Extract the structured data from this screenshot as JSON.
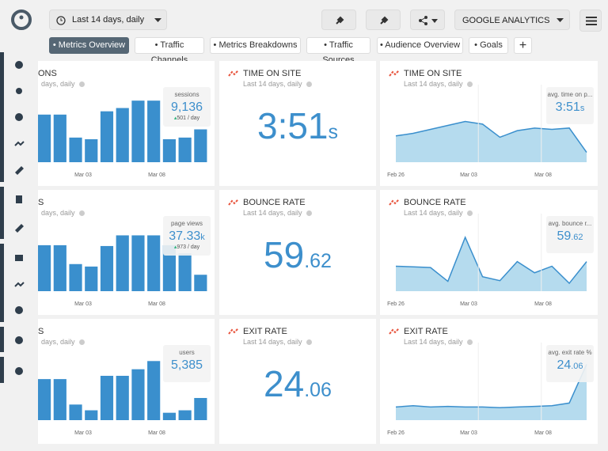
{
  "header": {
    "date_range": "Last 14 days, daily",
    "source": "GOOGLE ANALYTICS"
  },
  "tabs": [
    "Metrics Overview",
    "Traffic Channels",
    "Metrics Breakdowns",
    "Traffic Sources",
    "Audience Overview",
    "Goals"
  ],
  "active_tab": 0,
  "widgets": [
    {
      "kind": "bar",
      "title": "ONS",
      "subtitle": "days, daily",
      "ylim": [
        0,
        80
      ],
      "values": [
        58,
        58,
        30,
        28,
        62,
        66,
        75,
        75,
        28,
        30,
        40
      ],
      "x_labels": [
        "Mar 03",
        "Mar 08"
      ],
      "box": {
        "label": "sessions",
        "value": "9,136",
        "change": "501 / day"
      }
    },
    {
      "kind": "number",
      "title": "TIME ON SITE",
      "subtitle": "Last 14 days, daily",
      "value_main": "3:51",
      "value_suffix": "s"
    },
    {
      "kind": "area",
      "title": "TIME ON SITE",
      "subtitle": "Last 14 days, daily",
      "ylim": [
        0,
        100
      ],
      "values": [
        40,
        44,
        50,
        56,
        62,
        58,
        38,
        48,
        52,
        50,
        52,
        15
      ],
      "x_labels": [
        "Feb 26",
        "Mar 03",
        "Mar 08"
      ],
      "box": {
        "label": "avg. time on p...",
        "value": "3:51",
        "suffix": "s"
      }
    },
    {
      "kind": "bar",
      "title": "S",
      "subtitle": "days, daily",
      "ylim": [
        0,
        80
      ],
      "values": [
        56,
        56,
        33,
        30,
        55,
        68,
        68,
        68,
        56,
        46,
        20
      ],
      "x_labels": [
        "Mar 03",
        "Mar 08"
      ],
      "box": {
        "label": "page views",
        "value": "37.33",
        "suffix": "k",
        "change": "973 / day"
      }
    },
    {
      "kind": "number",
      "title": "BOUNCE RATE",
      "subtitle": "Last 14 days, daily",
      "value_main": "59",
      "value_suffix": ".62"
    },
    {
      "kind": "area",
      "title": "BOUNCE RATE",
      "subtitle": "Last 14 days, daily",
      "ylim": [
        0,
        100
      ],
      "values": [
        38,
        37,
        36,
        15,
        82,
        22,
        16,
        45,
        28,
        38,
        12,
        45
      ],
      "x_labels": [
        "Feb 26",
        "Mar 03",
        "Mar 08"
      ],
      "box": {
        "label": "avg. bounce r...",
        "value": "59",
        "suffix": ".62"
      }
    },
    {
      "kind": "bar",
      "title": "S",
      "subtitle": "days, daily",
      "ylim": [
        0,
        80
      ],
      "values": [
        50,
        50,
        19,
        12,
        54,
        54,
        62,
        72,
        9,
        12,
        27
      ],
      "x_labels": [
        "Mar 03",
        "Mar 08"
      ],
      "box": {
        "label": "users",
        "value": "5,385"
      }
    },
    {
      "kind": "number",
      "title": "EXIT RATE",
      "subtitle": "Last 14 days, daily",
      "value_main": "24",
      "value_suffix": ".06"
    },
    {
      "kind": "area",
      "title": "EXIT RATE",
      "subtitle": "Last 14 days, daily",
      "ylim": [
        0,
        100
      ],
      "values": [
        20,
        22,
        20,
        21,
        20,
        20,
        19,
        20,
        21,
        22,
        26,
        85
      ],
      "x_labels": [
        "Feb 26",
        "Mar 03",
        "Mar 08"
      ],
      "box": {
        "label": "avg. exit rate %",
        "value": "24",
        "suffix": ".06"
      }
    }
  ]
}
